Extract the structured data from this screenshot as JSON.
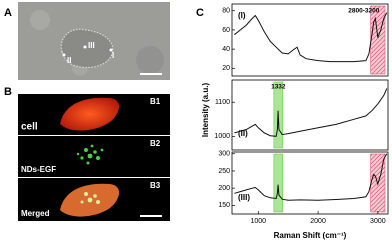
{
  "panel_a": {
    "label": "A",
    "markers": [
      "I",
      "II",
      "III"
    ]
  },
  "panel_b": {
    "label": "B",
    "subpanels": [
      {
        "id": "B1",
        "caption": "cell"
      },
      {
        "id": "B2",
        "caption": "NDs-EGF"
      },
      {
        "id": "B3",
        "caption": "Merged"
      }
    ]
  },
  "panel_c": {
    "label": "C",
    "xlabel": "Raman Shift (cm⁻¹)",
    "ylabel": "Intensity (a.u.)"
  },
  "chart_data": [
    {
      "type": "line",
      "label": "(I)",
      "color": "#111111",
      "x": [
        600,
        700,
        800,
        900,
        950,
        1000,
        1100,
        1200,
        1300,
        1400,
        1500,
        1600,
        1650,
        1700,
        1800,
        2000,
        2200,
        2400,
        2600,
        2800,
        2850,
        2900,
        2930,
        2960,
        3000,
        3050,
        3100,
        3150
      ],
      "values": [
        55,
        60,
        65,
        72,
        75,
        70,
        58,
        48,
        42,
        36,
        35,
        40,
        42,
        34,
        30,
        28,
        27,
        27,
        27,
        28,
        35,
        55,
        68,
        72,
        52,
        60,
        72,
        78
      ],
      "xlim": [
        560,
        3170
      ],
      "ylim": [
        12,
        87
      ],
      "yticks": [
        20,
        40,
        60,
        80
      ],
      "highlights": [
        {
          "range": [
            2880,
            3120
          ],
          "color": "#e0506e",
          "hatch": true,
          "label": "2800-3200"
        }
      ]
    },
    {
      "type": "line",
      "label": "(II)",
      "color": "#111111",
      "x": [
        600,
        700,
        800,
        900,
        950,
        1000,
        1100,
        1200,
        1300,
        1320,
        1332,
        1345,
        1400,
        1500,
        1700,
        2000,
        2300,
        2600,
        2800,
        2900,
        3000,
        3100,
        3150
      ],
      "values": [
        1010,
        1015,
        1020,
        1030,
        1035,
        1025,
        1010,
        1002,
        1000,
        1020,
        1075,
        1020,
        1005,
        1008,
        1015,
        1025,
        1035,
        1050,
        1060,
        1075,
        1095,
        1120,
        1140
      ],
      "xlim": [
        560,
        3170
      ],
      "ylim": [
        960,
        1165
      ],
      "yticks": [
        1000,
        1100
      ],
      "highlights": [
        {
          "range": [
            1260,
            1410
          ],
          "color": "#66cc44",
          "hatch": false,
          "label": "1332"
        }
      ]
    },
    {
      "type": "line",
      "label": "(III)",
      "color": "#111111",
      "x": [
        600,
        700,
        800,
        900,
        950,
        1000,
        1100,
        1200,
        1300,
        1320,
        1332,
        1345,
        1400,
        1500,
        1700,
        2000,
        2300,
        2600,
        2800,
        2850,
        2900,
        2930,
        2960,
        3000,
        3050,
        3100,
        3150
      ],
      "values": [
        185,
        190,
        195,
        200,
        202,
        195,
        178,
        172,
        170,
        185,
        210,
        180,
        168,
        165,
        166,
        165,
        167,
        170,
        175,
        190,
        225,
        240,
        235,
        212,
        240,
        285,
        300
      ],
      "xlim": [
        560,
        3170
      ],
      "ylim": [
        125,
        305
      ],
      "yticks": [
        150,
        200,
        250,
        300
      ],
      "xticks": [
        1000,
        2000,
        3000
      ],
      "highlights": [
        {
          "range": [
            1260,
            1410
          ],
          "color": "#66cc44",
          "hatch": false
        },
        {
          "range": [
            2880,
            3120
          ],
          "color": "#e0506e",
          "hatch": true
        }
      ]
    }
  ]
}
